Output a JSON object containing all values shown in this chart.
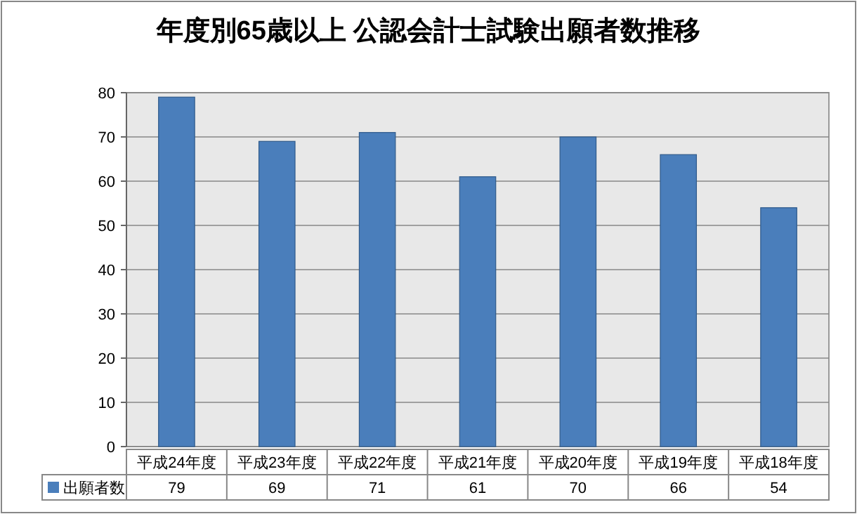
{
  "chart_data": {
    "type": "bar",
    "title": "年度別65歳以上 公認会計士試験出願者数推移",
    "categories": [
      "平成24年度",
      "平成23年度",
      "平成22年度",
      "平成21年度",
      "平成20年度",
      "平成19年度",
      "平成18年度"
    ],
    "series": [
      {
        "name": "出願者数",
        "color": "#4a7ebb",
        "values": [
          79,
          69,
          71,
          61,
          70,
          66,
          54
        ]
      }
    ],
    "ylim": [
      0,
      80
    ],
    "yticks": [
      0,
      10,
      20,
      30,
      40,
      50,
      60,
      70,
      80
    ],
    "grid": "y",
    "data_labels": true,
    "legend": "bottom"
  }
}
